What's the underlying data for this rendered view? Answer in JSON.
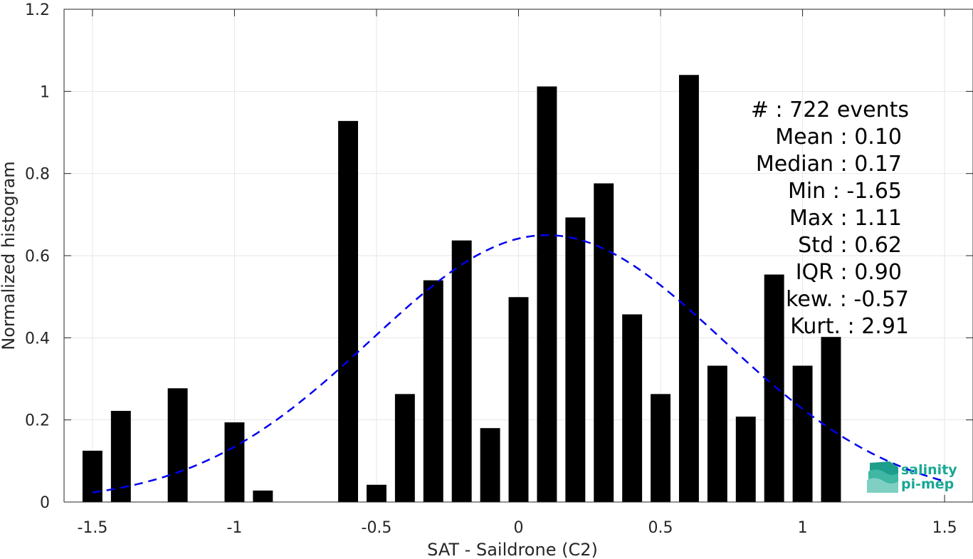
{
  "chart_data": {
    "type": "bar",
    "xlabel": "SAT - Saildrone (C2)",
    "ylabel": "Normalized histogram",
    "xlim": [
      -1.6,
      1.6
    ],
    "ylim": [
      0,
      1.2
    ],
    "xticks": [
      -1.5,
      -1,
      -0.5,
      0,
      0.5,
      1,
      1.5
    ],
    "xtick_labels": [
      "-1.5",
      "-1",
      "-0.5",
      "0",
      "0.5",
      "1",
      "1.5"
    ],
    "yticks": [
      0,
      0.2,
      0.4,
      0.6,
      0.8,
      1,
      1.2
    ],
    "ytick_labels": [
      "0",
      "0.2",
      "0.4",
      "0.6",
      "0.8",
      "1",
      "1.2"
    ],
    "grid": true,
    "bar_color": "#000000",
    "bar_width": 0.07,
    "bars": [
      {
        "x": -1.5,
        "y": 0.125
      },
      {
        "x": -1.4,
        "y": 0.222
      },
      {
        "x": -1.2,
        "y": 0.277
      },
      {
        "x": -1.0,
        "y": 0.194
      },
      {
        "x": -0.9,
        "y": 0.028
      },
      {
        "x": -0.6,
        "y": 0.928
      },
      {
        "x": -0.5,
        "y": 0.042
      },
      {
        "x": -0.4,
        "y": 0.263
      },
      {
        "x": -0.3,
        "y": 0.54
      },
      {
        "x": -0.2,
        "y": 0.637
      },
      {
        "x": -0.1,
        "y": 0.18
      },
      {
        "x": 0.0,
        "y": 0.499
      },
      {
        "x": 0.1,
        "y": 1.012
      },
      {
        "x": 0.2,
        "y": 0.693
      },
      {
        "x": 0.3,
        "y": 0.776
      },
      {
        "x": 0.4,
        "y": 0.457
      },
      {
        "x": 0.5,
        "y": 0.263
      },
      {
        "x": 0.6,
        "y": 1.04
      },
      {
        "x": 0.7,
        "y": 0.332
      },
      {
        "x": 0.8,
        "y": 0.208
      },
      {
        "x": 0.9,
        "y": 0.554
      },
      {
        "x": 1.0,
        "y": 0.332
      },
      {
        "x": 1.1,
        "y": 0.402
      }
    ],
    "fit_curve": {
      "style": "dashed",
      "color": "#0000ee",
      "mean": 0.1,
      "std": 0.62,
      "peak": 0.65,
      "x_range": [
        -1.5,
        1.5
      ]
    },
    "stats": [
      "#  : 722 events",
      "Mean : 0.10",
      "Median : 0.17",
      "Min : -1.65",
      "Max : 1.11",
      "Std : 0.62",
      "IQR : 0.90",
      "kew. : -0.57",
      "Kurt. : 2.91"
    ]
  },
  "logo": {
    "line1": "salinity",
    "line2": "pi-mep",
    "color": "#18a894"
  }
}
